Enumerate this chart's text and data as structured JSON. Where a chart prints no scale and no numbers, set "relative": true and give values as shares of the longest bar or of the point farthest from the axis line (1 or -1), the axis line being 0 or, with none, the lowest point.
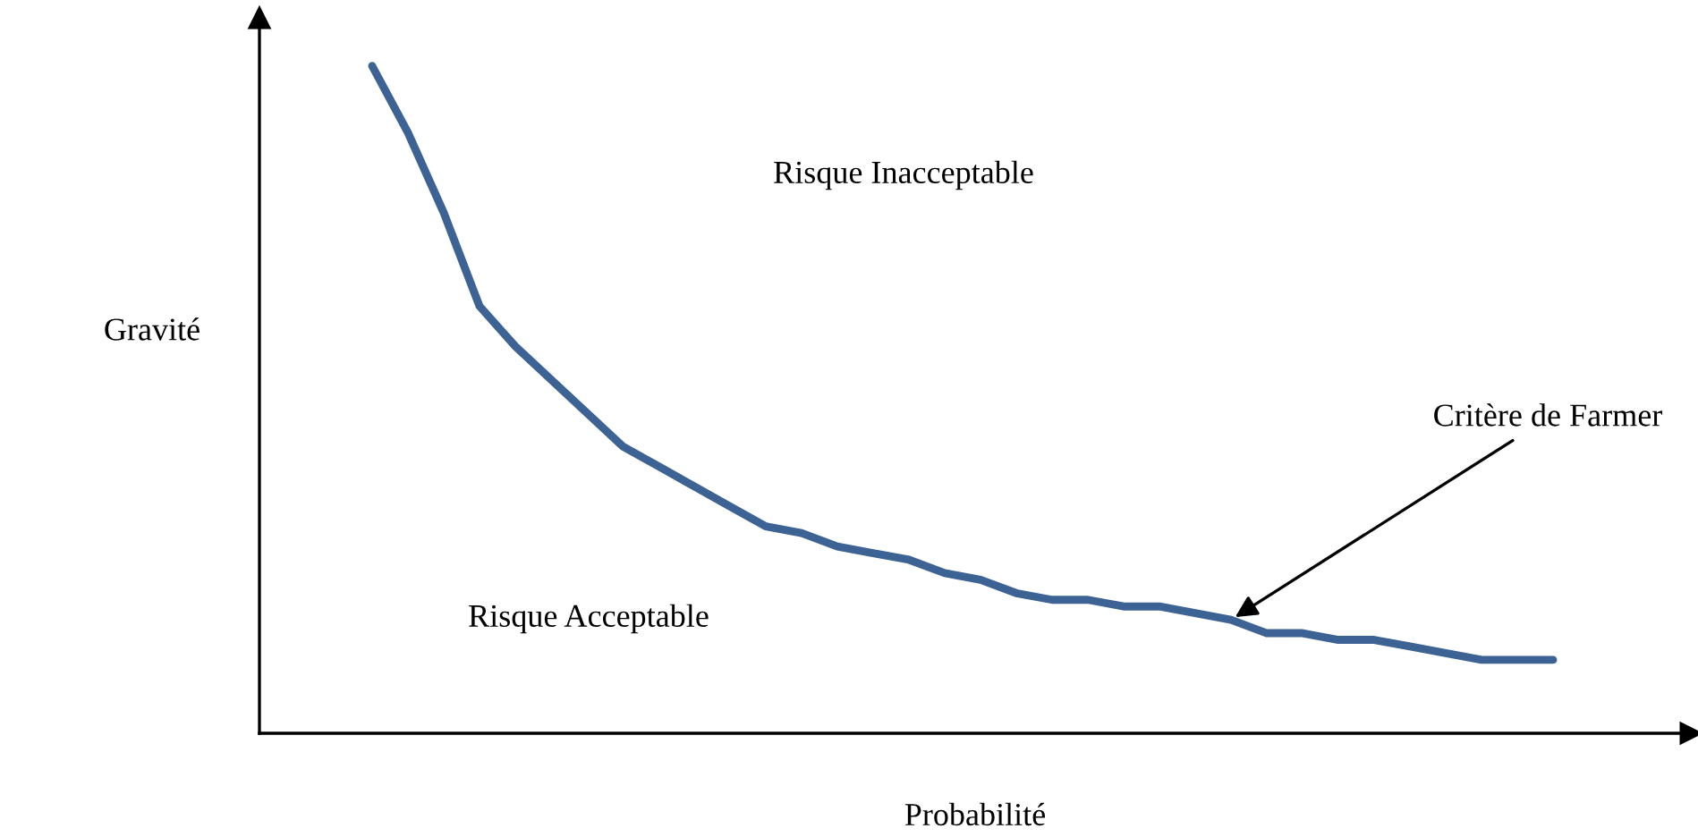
{
  "chart_data": {
    "type": "line",
    "relative": true,
    "xlabel": "Probabilité",
    "ylabel": "Gravité",
    "categories": [
      null,
      null,
      null,
      null,
      null,
      null,
      null,
      null,
      null,
      null,
      null,
      null,
      null,
      null,
      null,
      null,
      null,
      null,
      null,
      null,
      null,
      null,
      null,
      null,
      null,
      null,
      null,
      null,
      null,
      null,
      null,
      null,
      null,
      null
    ],
    "series": [
      {
        "color": "#3c6394",
        "values": [
          1.0,
          0.9,
          0.78,
          0.64,
          0.58,
          0.53,
          0.48,
          0.43,
          0.4,
          0.37,
          0.34,
          0.31,
          0.3,
          0.28,
          0.27,
          0.26,
          0.24,
          0.23,
          0.21,
          0.2,
          0.2,
          0.19,
          0.19,
          0.18,
          0.17,
          0.15,
          0.15,
          0.14,
          0.14,
          0.13,
          0.12,
          0.11,
          0.11,
          0.11
        ]
      }
    ],
    "annotations": [
      "Risque Inacceptable",
      "Risque Acceptable",
      "Critère de Farmer"
    ]
  }
}
